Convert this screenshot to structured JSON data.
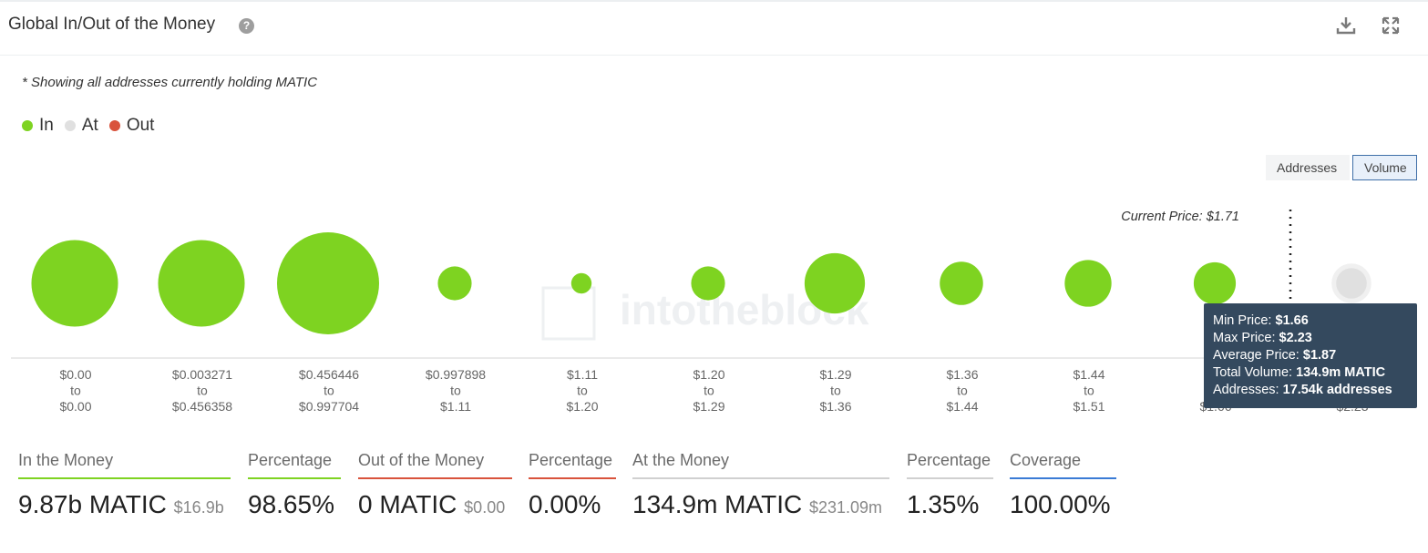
{
  "header": {
    "title": "Global In/Out of the Money",
    "help_icon": "question-circle-icon",
    "download_icon": "download-icon",
    "fullscreen_icon": "expand-icon"
  },
  "note": "* Showing all addresses currently holding MATIC",
  "legend": [
    {
      "label": "In",
      "color": "#7ed321"
    },
    {
      "label": "At",
      "color": "#e0e0e0"
    },
    {
      "label": "Out",
      "color": "#d9533c"
    }
  ],
  "toggle": {
    "addresses": "Addresses",
    "volume": "Volume",
    "active": "Volume"
  },
  "watermark": "intotheblock",
  "chart_data": {
    "type": "scatter",
    "title": "",
    "xlabel": "",
    "ylabel": "",
    "current_price_label": "Current Price: $1.71",
    "categories": [
      {
        "line1": "$0.00",
        "line2": "to",
        "line3": "$0.00",
        "status": "In",
        "relative_volume": 0.72
      },
      {
        "line1": "$0.003271",
        "line2": "to",
        "line3": "$0.456358",
        "status": "In",
        "relative_volume": 0.72
      },
      {
        "line1": "$0.456446",
        "line2": "to",
        "line3": "$0.997704",
        "status": "In",
        "relative_volume": 1.0
      },
      {
        "line1": "$0.997898",
        "line2": "to",
        "line3": "$1.11",
        "status": "In",
        "relative_volume": 0.11
      },
      {
        "line1": "$1.11",
        "line2": "to",
        "line3": "$1.20",
        "status": "In",
        "relative_volume": 0.04
      },
      {
        "line1": "$1.20",
        "line2": "to",
        "line3": "$1.29",
        "status": "In",
        "relative_volume": 0.11
      },
      {
        "line1": "$1.29",
        "line2": "to",
        "line3": "$1.36",
        "status": "In",
        "relative_volume": 0.35
      },
      {
        "line1": "$1.36",
        "line2": "to",
        "line3": "$1.44",
        "status": "In",
        "relative_volume": 0.18
      },
      {
        "line1": "$1.44",
        "line2": "to",
        "line3": "$1.51",
        "status": "In",
        "relative_volume": 0.21
      },
      {
        "line1": "$",
        "line2": "",
        "line3": "$1.66",
        "status": "In",
        "relative_volume": 0.17
      },
      {
        "line1": "",
        "line2": "",
        "line3": "$2.23",
        "status": "At",
        "relative_volume": 0.09
      }
    ],
    "tooltip": {
      "min_price_label": "Min Price:",
      "min_price": "$1.66",
      "max_price_label": "Max Price:",
      "max_price": "$2.23",
      "avg_price_label": "Average Price:",
      "avg_price": "$1.87",
      "total_volume_label": "Total Volume:",
      "total_volume": "134.9m MATIC",
      "addresses_label": "Addresses:",
      "addresses": "17.54k addresses"
    }
  },
  "stats": [
    {
      "label": "In the Money",
      "value": "9.87b MATIC",
      "sub": "$16.9b",
      "color": "#7ed321"
    },
    {
      "label": "Percentage",
      "value": "98.65%",
      "sub": "",
      "color": "#7ed321"
    },
    {
      "label": "Out of the Money",
      "value": "0 MATIC",
      "sub": "$0.00",
      "color": "#d9533c"
    },
    {
      "label": "Percentage",
      "value": "0.00%",
      "sub": "",
      "color": "#d9533c"
    },
    {
      "label": "At the Money",
      "value": "134.9m MATIC",
      "sub": "$231.09m",
      "color": "#d0d0d0"
    },
    {
      "label": "Percentage",
      "value": "1.35%",
      "sub": "",
      "color": "#d0d0d0"
    },
    {
      "label": "Coverage",
      "value": "100.00%",
      "sub": "",
      "color": "#3a7bd5"
    }
  ]
}
